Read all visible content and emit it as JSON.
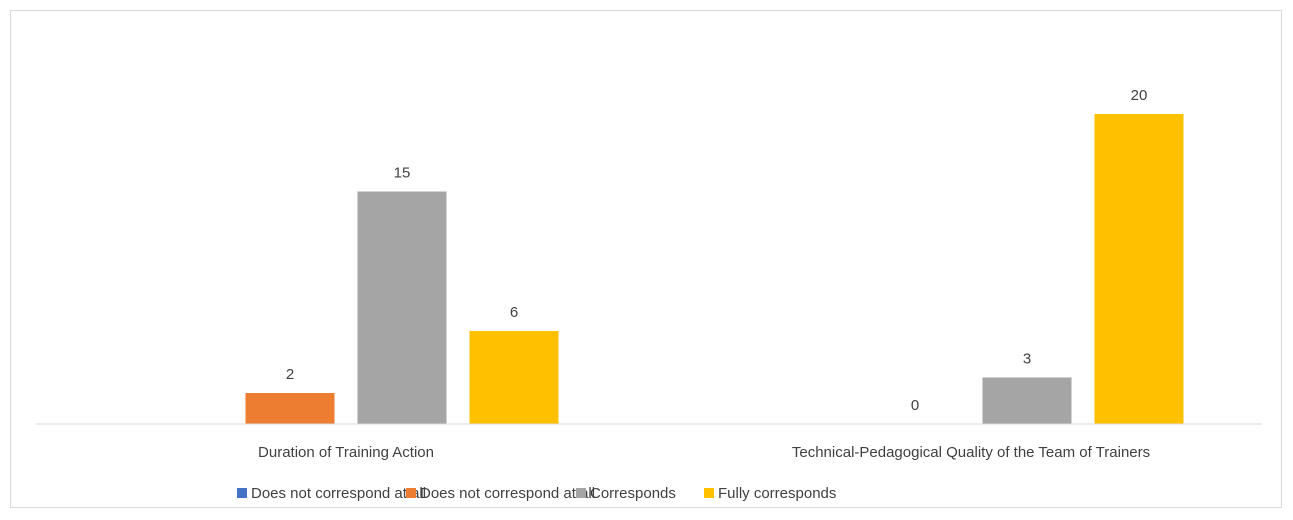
{
  "chart_data": {
    "type": "bar",
    "categories": [
      "Duration of Training Action",
      "Technical-Pedagogical Quality of the Team of Trainers"
    ],
    "series": [
      {
        "name": "Does not correspond at all",
        "color": "#4472C4",
        "values": [
          null,
          null
        ]
      },
      {
        "name": "Does not correspond at all",
        "color": "#ED7D31",
        "values": [
          2,
          0
        ]
      },
      {
        "name": "Corresponds",
        "color": "#A5A5A5",
        "values": [
          15,
          3
        ]
      },
      {
        "name": "Fully corresponds",
        "color": "#FFC000",
        "values": [
          6,
          20
        ]
      }
    ],
    "ylim": [
      0,
      20
    ],
    "grid": false,
    "legend_position": "bottom"
  }
}
